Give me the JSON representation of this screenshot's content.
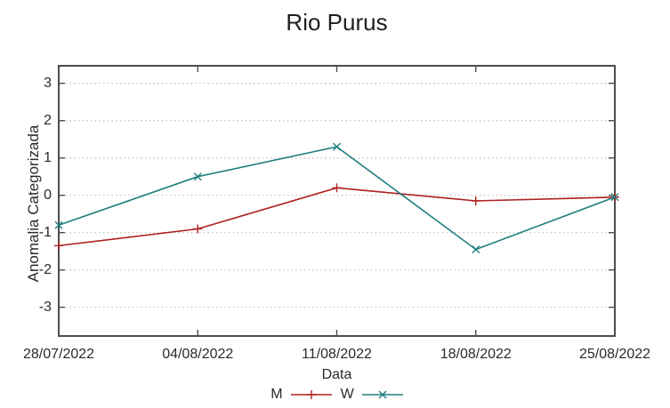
{
  "colors": {
    "series_m": "#b02020",
    "series_w": "#1f7e7e",
    "grid": "#bdbdbd",
    "border": "#4d4d4d",
    "tick": "#4d4d4d",
    "text": "#2a2a2a"
  },
  "chart_data": {
    "type": "line",
    "title": "Rio Purus",
    "xlabel": "Data",
    "ylabel": "Anomalia Categorizada",
    "categories": [
      "28/07/2022",
      "04/08/2022",
      "11/08/2022",
      "18/08/2022",
      "25/08/2022"
    ],
    "y_ticks": [
      3,
      2,
      1,
      0,
      -1,
      -2,
      -3
    ],
    "ylim": [
      -3.77,
      3.47
    ],
    "grid": "horizontal dotted lines at each y tick",
    "legend_position": "bottom-center",
    "series": [
      {
        "name": "M",
        "color": "#b02020",
        "marker": "plus",
        "values": [
          -1.35,
          -0.9,
          0.2,
          -0.15,
          -0.05
        ]
      },
      {
        "name": "W",
        "color": "#1f7e7e",
        "marker": "cross",
        "values": [
          -0.8,
          0.5,
          1.3,
          -1.45,
          -0.05
        ]
      }
    ]
  }
}
